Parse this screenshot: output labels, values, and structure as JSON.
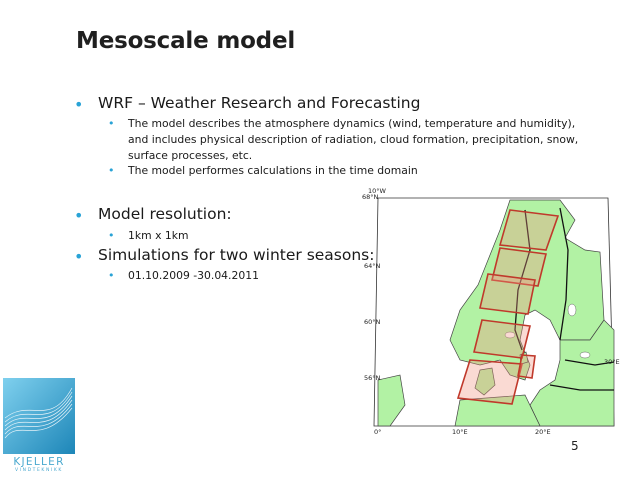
{
  "slide": {
    "title": "Mesoscale model",
    "page_number": "5"
  },
  "bullets": {
    "wrf": "WRF – Weather Research and Forecasting",
    "wrf_sub1_line1": "The model describes the atmosphere dynamics (wind, temperature and humidity),",
    "wrf_sub1_line2": "and includes physical description of radiation, cloud formation, precipitation, snow,",
    "wrf_sub1_line3": "surface processes, etc.",
    "wrf_sub2": "The model performes calculations in the time domain",
    "resolution": "Model resolution:",
    "resolution_sub": "1km x 1km",
    "simulations": "Simulations for two winter seasons:",
    "simulations_sub": "01.10.2009 -30.04.2011"
  },
  "map": {
    "lat_labels": [
      "68°N",
      "64°N",
      "60°N",
      "56°N"
    ],
    "lon_labels": [
      "0°",
      "10°E",
      "20°E",
      "30°E"
    ],
    "top_label": "10°W",
    "land_color": "#b2f2a4",
    "sea_color": "#ffffff",
    "box_color": "#c0392b"
  },
  "logo": {
    "name": "KJELLER",
    "subtitle": "VINDTEKNIKK",
    "accent": "#4aa9cf"
  }
}
